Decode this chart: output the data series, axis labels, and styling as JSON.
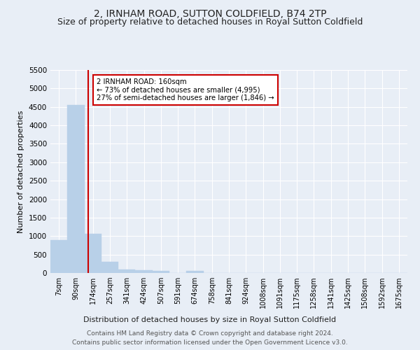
{
  "title": "2, IRNHAM ROAD, SUTTON COLDFIELD, B74 2TP",
  "subtitle": "Size of property relative to detached houses in Royal Sutton Coldfield",
  "xlabel": "Distribution of detached houses by size in Royal Sutton Coldfield",
  "ylabel": "Number of detached properties",
  "footnote1": "Contains HM Land Registry data © Crown copyright and database right 2024.",
  "footnote2": "Contains public sector information licensed under the Open Government Licence v3.0.",
  "bar_labels": [
    "7sqm",
    "90sqm",
    "174sqm",
    "257sqm",
    "341sqm",
    "424sqm",
    "507sqm",
    "591sqm",
    "674sqm",
    "758sqm",
    "841sqm",
    "924sqm",
    "1008sqm",
    "1091sqm",
    "1175sqm",
    "1258sqm",
    "1341sqm",
    "1425sqm",
    "1508sqm",
    "1592sqm",
    "1675sqm"
  ],
  "bar_values": [
    900,
    4550,
    1060,
    295,
    90,
    70,
    55,
    0,
    65,
    0,
    0,
    0,
    0,
    0,
    0,
    0,
    0,
    0,
    0,
    0,
    0
  ],
  "bar_color": "#b8d0e8",
  "bar_edgecolor": "#b8d0e8",
  "vline_x_index": 1.72,
  "vline_color": "#cc0000",
  "annotation_text": "2 IRNHAM ROAD: 160sqm\n← 73% of detached houses are smaller (4,995)\n27% of semi-detached houses are larger (1,846) →",
  "annotation_box_color": "#cc0000",
  "ylim": [
    0,
    5500
  ],
  "yticks": [
    0,
    500,
    1000,
    1500,
    2000,
    2500,
    3000,
    3500,
    4000,
    4500,
    5000,
    5500
  ],
  "bg_color": "#e8eef6",
  "plot_bg_color": "#e8eef6",
  "grid_color": "#ffffff",
  "title_fontsize": 10,
  "subtitle_fontsize": 9,
  "footnote_fontsize": 6.5
}
